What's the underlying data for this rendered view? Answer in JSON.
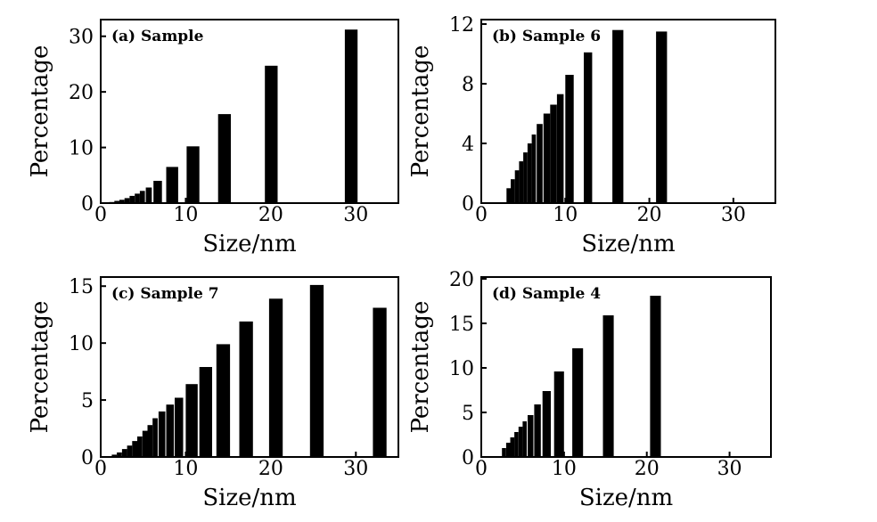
{
  "chart_data": [
    {
      "type": "bar",
      "title": "(a) Sample",
      "xlabel": "Size/nm",
      "ylabel": "Percentage",
      "xlim": [
        0,
        35
      ],
      "ylim": [
        0,
        33
      ],
      "xticks": [
        0,
        10,
        20,
        30
      ],
      "yticks": [
        0,
        10,
        20,
        30
      ],
      "bars": [
        {
          "x": 1.0,
          "y": 0.2,
          "w": 0.6
        },
        {
          "x": 1.6,
          "y": 0.4,
          "w": 0.6
        },
        {
          "x": 2.2,
          "y": 0.6,
          "w": 0.6
        },
        {
          "x": 2.8,
          "y": 0.9,
          "w": 0.6
        },
        {
          "x": 3.4,
          "y": 1.3,
          "w": 0.6
        },
        {
          "x": 4.0,
          "y": 1.7,
          "w": 0.6
        },
        {
          "x": 4.6,
          "y": 2.2,
          "w": 0.6
        },
        {
          "x": 5.3,
          "y": 2.8,
          "w": 0.7
        },
        {
          "x": 6.2,
          "y": 4.0,
          "w": 1.0
        },
        {
          "x": 7.7,
          "y": 6.5,
          "w": 1.4
        },
        {
          "x": 10.1,
          "y": 10.2,
          "w": 1.5
        },
        {
          "x": 13.8,
          "y": 16.0,
          "w": 1.5
        },
        {
          "x": 19.3,
          "y": 24.7,
          "w": 1.5
        },
        {
          "x": 28.7,
          "y": 31.2,
          "w": 1.5
        }
      ]
    },
    {
      "type": "bar",
      "title": "(b) Sample 6",
      "xlabel": "Size/nm",
      "ylabel": "Percentage",
      "xlim": [
        0,
        35
      ],
      "ylim": [
        0,
        12.3
      ],
      "xticks": [
        0,
        10,
        20,
        30
      ],
      "yticks": [
        0,
        4,
        8,
        12
      ],
      "bars": [
        {
          "x": 3.0,
          "y": 1.0,
          "w": 0.5
        },
        {
          "x": 3.5,
          "y": 1.6,
          "w": 0.5
        },
        {
          "x": 4.0,
          "y": 2.2,
          "w": 0.5
        },
        {
          "x": 4.5,
          "y": 2.8,
          "w": 0.5
        },
        {
          "x": 5.0,
          "y": 3.4,
          "w": 0.5
        },
        {
          "x": 5.5,
          "y": 4.0,
          "w": 0.5
        },
        {
          "x": 6.0,
          "y": 4.6,
          "w": 0.5
        },
        {
          "x": 6.6,
          "y": 5.3,
          "w": 0.7
        },
        {
          "x": 7.4,
          "y": 6.0,
          "w": 0.8
        },
        {
          "x": 8.2,
          "y": 6.6,
          "w": 0.8
        },
        {
          "x": 9.0,
          "y": 7.3,
          "w": 0.8
        },
        {
          "x": 10.0,
          "y": 8.6,
          "w": 1.0
        },
        {
          "x": 12.2,
          "y": 10.1,
          "w": 1.0
        },
        {
          "x": 15.6,
          "y": 11.6,
          "w": 1.3
        },
        {
          "x": 20.8,
          "y": 11.5,
          "w": 1.3
        }
      ]
    },
    {
      "type": "bar",
      "title": "(c) Sample 7",
      "xlabel": "Size/nm",
      "ylabel": "Percentage",
      "xlim": [
        0,
        35
      ],
      "ylim": [
        0,
        15.8
      ],
      "xticks": [
        0,
        10,
        20,
        30
      ],
      "yticks": [
        0,
        5,
        10,
        15
      ],
      "bars": [
        {
          "x": 1.3,
          "y": 0.2,
          "w": 0.6
        },
        {
          "x": 1.9,
          "y": 0.4,
          "w": 0.6
        },
        {
          "x": 2.5,
          "y": 0.7,
          "w": 0.6
        },
        {
          "x": 3.1,
          "y": 1.0,
          "w": 0.6
        },
        {
          "x": 3.7,
          "y": 1.4,
          "w": 0.6
        },
        {
          "x": 4.3,
          "y": 1.8,
          "w": 0.6
        },
        {
          "x": 4.9,
          "y": 2.3,
          "w": 0.6
        },
        {
          "x": 5.5,
          "y": 2.8,
          "w": 0.6
        },
        {
          "x": 6.1,
          "y": 3.4,
          "w": 0.6
        },
        {
          "x": 6.8,
          "y": 4.0,
          "w": 0.8
        },
        {
          "x": 7.7,
          "y": 4.6,
          "w": 0.9
        },
        {
          "x": 8.7,
          "y": 5.2,
          "w": 1.0
        },
        {
          "x": 10.0,
          "y": 6.4,
          "w": 1.4
        },
        {
          "x": 11.6,
          "y": 7.9,
          "w": 1.5
        },
        {
          "x": 13.6,
          "y": 9.9,
          "w": 1.6
        },
        {
          "x": 16.3,
          "y": 11.9,
          "w": 1.6
        },
        {
          "x": 19.8,
          "y": 13.9,
          "w": 1.6
        },
        {
          "x": 24.6,
          "y": 15.1,
          "w": 1.6
        },
        {
          "x": 32.0,
          "y": 13.1,
          "w": 1.6
        }
      ]
    },
    {
      "type": "bar",
      "title": "(d) Sample 4",
      "xlabel": "Size/nm",
      "ylabel": "Percentage",
      "xlim": [
        0,
        35
      ],
      "ylim": [
        0,
        20.2
      ],
      "xticks": [
        0,
        10,
        20,
        30
      ],
      "yticks": [
        0,
        5,
        10,
        15,
        20
      ],
      "bars": [
        {
          "x": 2.5,
          "y": 1.0,
          "w": 0.5
        },
        {
          "x": 3.0,
          "y": 1.6,
          "w": 0.5
        },
        {
          "x": 3.5,
          "y": 2.2,
          "w": 0.5
        },
        {
          "x": 4.0,
          "y": 2.8,
          "w": 0.5
        },
        {
          "x": 4.5,
          "y": 3.4,
          "w": 0.5
        },
        {
          "x": 5.0,
          "y": 4.0,
          "w": 0.5
        },
        {
          "x": 5.6,
          "y": 4.7,
          "w": 0.7
        },
        {
          "x": 6.4,
          "y": 5.9,
          "w": 0.8
        },
        {
          "x": 7.4,
          "y": 7.4,
          "w": 1.0
        },
        {
          "x": 8.8,
          "y": 9.6,
          "w": 1.2
        },
        {
          "x": 11.0,
          "y": 12.2,
          "w": 1.3
        },
        {
          "x": 14.7,
          "y": 15.9,
          "w": 1.3
        },
        {
          "x": 20.4,
          "y": 18.1,
          "w": 1.3
        }
      ]
    }
  ]
}
